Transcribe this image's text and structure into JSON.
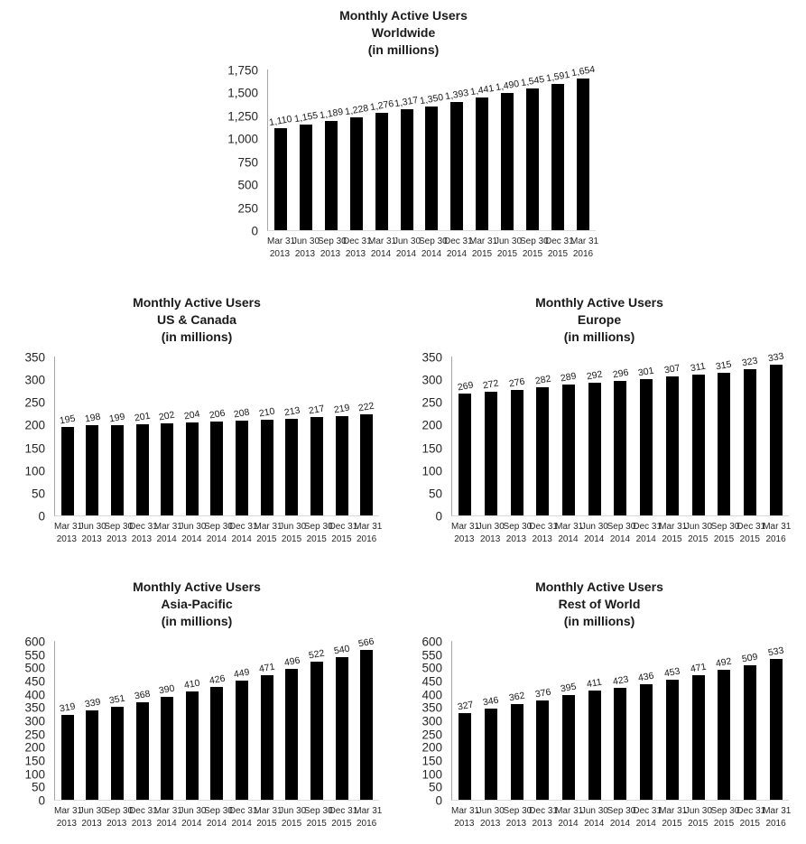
{
  "figure": {
    "description_title": "Monthly Active Users",
    "unit_note": "(in millions)"
  },
  "chart_data": [
    {
      "type": "bar",
      "title": "Monthly Active Users",
      "subtitle": "Worldwide",
      "unit_label": "(in millions)",
      "categories": [
        "Mar 31 2013",
        "Jun 30 2013",
        "Sep 30 2013",
        "Dec 31 2013",
        "Mar 31 2014",
        "Jun 30 2014",
        "Sep 30 2014",
        "Dec 31 2014",
        "Mar 31 2015",
        "Jun 30 2015",
        "Sep 30 2015",
        "Dec 31 2015",
        "Mar 31 2016"
      ],
      "values": [
        1110,
        1155,
        1189,
        1228,
        1276,
        1317,
        1350,
        1393,
        1441,
        1490,
        1545,
        1591,
        1654
      ],
      "value_labels": [
        "1,110",
        "1,155",
        "1,189",
        "1,228",
        "1,276",
        "1,317",
        "1,350",
        "1,393",
        "1,441",
        "1,490",
        "1,545",
        "1,591",
        "1,654"
      ],
      "ylim": [
        0,
        1750
      ],
      "ytick_step": 250,
      "ytick_labels": [
        "0",
        "250",
        "500",
        "750",
        "1,000",
        "1,250",
        "1,500",
        "1,750"
      ],
      "bar_color": "#000000",
      "grid": false,
      "legend": null
    },
    {
      "type": "bar",
      "title": "Monthly Active Users",
      "subtitle": "US & Canada",
      "unit_label": "(in millions)",
      "categories": [
        "Mar 31 2013",
        "Jun 30 2013",
        "Sep 30 2013",
        "Dec 31 2013",
        "Mar 31 2014",
        "Jun 30 2014",
        "Sep 30 2014",
        "Dec 31 2014",
        "Mar 31 2015",
        "Jun 30 2015",
        "Sep 30 2015",
        "Dec 31 2015",
        "Mar 31 2016"
      ],
      "values": [
        195,
        198,
        199,
        201,
        202,
        204,
        206,
        208,
        210,
        213,
        217,
        219,
        222
      ],
      "value_labels": [
        "195",
        "198",
        "199",
        "201",
        "202",
        "204",
        "206",
        "208",
        "210",
        "213",
        "217",
        "219",
        "222"
      ],
      "ylim": [
        0,
        350
      ],
      "ytick_step": 50,
      "ytick_labels": [
        "0",
        "50",
        "100",
        "150",
        "200",
        "250",
        "300",
        "350"
      ],
      "bar_color": "#000000",
      "grid": false,
      "legend": null
    },
    {
      "type": "bar",
      "title": "Monthly Active Users",
      "subtitle": "Europe",
      "unit_label": "(in millions)",
      "categories": [
        "Mar 31 2013",
        "Jun 30 2013",
        "Sep 30 2013",
        "Dec 31 2013",
        "Mar 31 2014",
        "Jun 30 2014",
        "Sep 30 2014",
        "Dec 31 2014",
        "Mar 31 2015",
        "Jun 30 2015",
        "Sep 30 2015",
        "Dec 31 2015",
        "Mar 31 2016"
      ],
      "values": [
        269,
        272,
        276,
        282,
        289,
        292,
        296,
        301,
        307,
        311,
        315,
        323,
        333
      ],
      "value_labels": [
        "269",
        "272",
        "276",
        "282",
        "289",
        "292",
        "296",
        "301",
        "307",
        "311",
        "315",
        "323",
        "333"
      ],
      "ylim": [
        0,
        350
      ],
      "ytick_step": 50,
      "ytick_labels": [
        "0",
        "50",
        "100",
        "150",
        "200",
        "250",
        "300",
        "350"
      ],
      "bar_color": "#000000",
      "grid": false,
      "legend": null
    },
    {
      "type": "bar",
      "title": "Monthly Active Users",
      "subtitle": "Asia-Pacific",
      "unit_label": "(in millions)",
      "categories": [
        "Mar 31 2013",
        "Jun 30 2013",
        "Sep 30 2013",
        "Dec 31 2013",
        "Mar 31 2014",
        "Jun 30 2014",
        "Sep 30 2014",
        "Dec 31 2014",
        "Mar 31 2015",
        "Jun 30 2015",
        "Sep 30 2015",
        "Dec 31 2015",
        "Mar 31 2016"
      ],
      "values": [
        319,
        339,
        351,
        368,
        390,
        410,
        426,
        449,
        471,
        496,
        522,
        540,
        566
      ],
      "value_labels": [
        "319",
        "339",
        "351",
        "368",
        "390",
        "410",
        "426",
        "449",
        "471",
        "496",
        "522",
        "540",
        "566"
      ],
      "ylim": [
        0,
        600
      ],
      "ytick_step": 50,
      "ytick_labels": [
        "0",
        "50",
        "100",
        "150",
        "200",
        "250",
        "300",
        "350",
        "400",
        "450",
        "500",
        "550",
        "600"
      ],
      "bar_color": "#000000",
      "grid": false,
      "legend": null
    },
    {
      "type": "bar",
      "title": "Monthly Active Users",
      "subtitle": "Rest of World",
      "unit_label": "(in millions)",
      "categories": [
        "Mar 31 2013",
        "Jun 30 2013",
        "Sep 30 2013",
        "Dec 31 2013",
        "Mar 31 2014",
        "Jun 30 2014",
        "Sep 30 2014",
        "Dec 31 2014",
        "Mar 31 2015",
        "Jun 30 2015",
        "Sep 30 2015",
        "Dec 31 2015",
        "Mar 31 2016"
      ],
      "values": [
        327,
        346,
        362,
        376,
        395,
        411,
        423,
        436,
        453,
        471,
        492,
        509,
        533
      ],
      "value_labels": [
        "327",
        "346",
        "362",
        "376",
        "395",
        "411",
        "423",
        "436",
        "453",
        "471",
        "492",
        "509",
        "533"
      ],
      "ylim": [
        0,
        600
      ],
      "ytick_step": 50,
      "ytick_labels": [
        "0",
        "50",
        "100",
        "150",
        "200",
        "250",
        "300",
        "350",
        "400",
        "450",
        "500",
        "550",
        "600"
      ],
      "bar_color": "#000000",
      "grid": false,
      "legend": null
    }
  ]
}
